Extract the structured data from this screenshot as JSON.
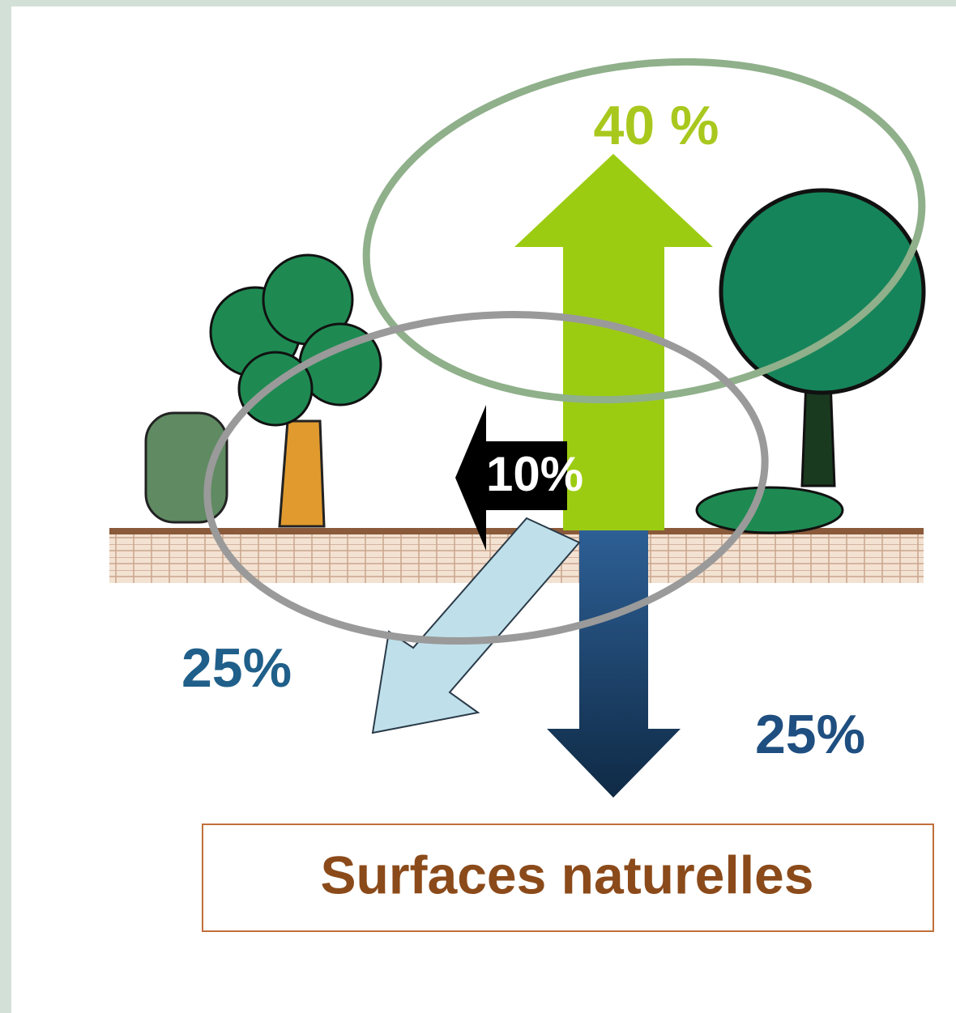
{
  "labels": {
    "evaporation": "40 %",
    "runoff": "10%",
    "shallow_infiltration": "25%",
    "deep_infiltration": "25%"
  },
  "caption": "Surfaces naturelles"
}
